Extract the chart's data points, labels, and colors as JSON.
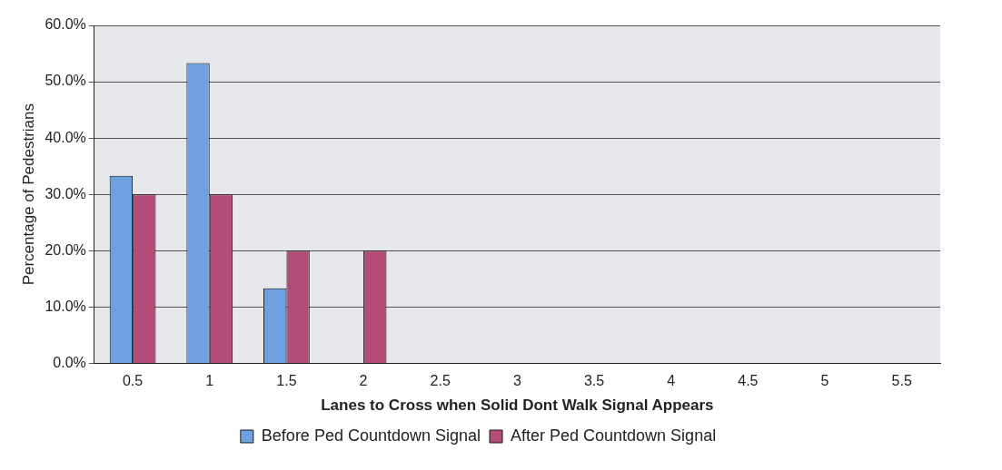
{
  "chart_data": {
    "type": "bar",
    "xlabel": "Lanes to Cross when Solid Dont Walk Signal Appears",
    "ylabel": "Percentage of Pedestrians",
    "categories": [
      "0.5",
      "1",
      "1.5",
      "2",
      "2.5",
      "3",
      "3.5",
      "4",
      "4.5",
      "5",
      "5.5"
    ],
    "series": [
      {
        "name": "Before Ped Countdown Signal",
        "color": "#6fa0e0",
        "values": [
          33.3,
          53.3,
          13.3,
          0,
          0,
          0,
          0,
          0,
          0,
          0,
          0
        ]
      },
      {
        "name": "After Ped Countdown Signal",
        "color": "#b44c78",
        "values": [
          30,
          30,
          20,
          20,
          0,
          0,
          0,
          0,
          0,
          0,
          0
        ]
      }
    ],
    "ylim": [
      0,
      60
    ],
    "yticks": [
      {
        "value": 0,
        "label": "0.0%"
      },
      {
        "value": 10,
        "label": "10.0%"
      },
      {
        "value": 20,
        "label": "20.0%"
      },
      {
        "value": 30,
        "label": "30.0%"
      },
      {
        "value": 40,
        "label": "40.0%"
      },
      {
        "value": 50,
        "label": "50.0%"
      },
      {
        "value": 60,
        "label": "60.0%"
      }
    ],
    "grid": "y",
    "legend": "bottom"
  }
}
